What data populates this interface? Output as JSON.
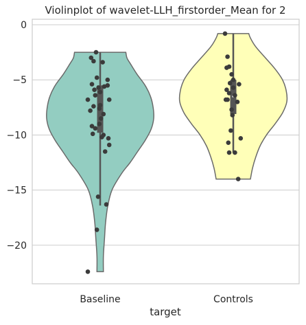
{
  "chart_data": {
    "type": "violin",
    "title": "Violinplot of wavelet-LLH_firstorder_Mean for 2",
    "xlabel": "target",
    "ylabel": "",
    "ylim": [
      -23.5,
      0.5
    ],
    "yticks": [
      0,
      -5,
      -10,
      -15,
      -20
    ],
    "ytick_labels": [
      "0",
      "−5",
      "−10",
      "−15",
      "−20"
    ],
    "grid": true,
    "categories": [
      "Baseline",
      "Controls"
    ],
    "series": [
      {
        "color": "#93cdc1",
        "min": -22.4,
        "max": -2.5,
        "q1": -9.8,
        "median": -7.5,
        "q3": -5.5,
        "whisker_low": -16.4,
        "whisker_high": -2.5,
        "density": [
          [
            -22.4,
            0.06
          ],
          [
            -21.0,
            0.06
          ],
          [
            -19.5,
            0.08
          ],
          [
            -18.0,
            0.1
          ],
          [
            -16.5,
            0.14
          ],
          [
            -15.0,
            0.22
          ],
          [
            -13.5,
            0.4
          ],
          [
            -12.5,
            0.56
          ],
          [
            -11.5,
            0.7
          ],
          [
            -10.5,
            0.84
          ],
          [
            -9.5,
            0.95
          ],
          [
            -8.5,
            1.0
          ],
          [
            -7.5,
            0.99
          ],
          [
            -6.5,
            0.94
          ],
          [
            -5.5,
            0.84
          ],
          [
            -4.5,
            0.69
          ],
          [
            -3.5,
            0.56
          ],
          [
            -3.0,
            0.5
          ],
          [
            -2.5,
            0.48
          ]
        ],
        "points": [
          [
            -0.3,
            -22.4
          ],
          [
            -0.08,
            -18.6
          ],
          [
            0.15,
            -16.3
          ],
          [
            -0.05,
            -15.6
          ],
          [
            0.12,
            -11.5
          ],
          [
            0.22,
            -10.9
          ],
          [
            0.2,
            -10.3
          ],
          [
            0.04,
            -10.2
          ],
          [
            0.08,
            -10.0
          ],
          [
            -0.18,
            -9.9
          ],
          [
            -0.12,
            -9.4
          ],
          [
            -0.2,
            -9.2
          ],
          [
            -0.02,
            -9.0
          ],
          [
            0.02,
            -8.5
          ],
          [
            0.08,
            -8.1
          ],
          [
            -0.24,
            -7.8
          ],
          [
            -0.02,
            -7.6
          ],
          [
            0.0,
            -7.3
          ],
          [
            -0.16,
            -7.4
          ],
          [
            -0.3,
            -6.8
          ],
          [
            0.22,
            -6.8
          ],
          [
            -0.12,
            -6.4
          ],
          [
            0.0,
            -6.1
          ],
          [
            -0.14,
            -5.9
          ],
          [
            -0.04,
            -5.7
          ],
          [
            0.1,
            -5.6
          ],
          [
            0.18,
            -5.5
          ],
          [
            -0.2,
            -5.4
          ],
          [
            0.18,
            -5.0
          ],
          [
            -0.08,
            -4.8
          ],
          [
            0.06,
            -3.4
          ],
          [
            -0.16,
            -3.3
          ],
          [
            -0.22,
            -3.0
          ],
          [
            -0.1,
            -2.5
          ]
        ]
      },
      {
        "color": "#ffffb8",
        "min": -14.0,
        "max": -0.8,
        "q1": -8.1,
        "median": -6.5,
        "q3": -5.0,
        "whisker_low": -11.6,
        "whisker_high": -0.8,
        "density": [
          [
            -14.0,
            0.32
          ],
          [
            -13.0,
            0.36
          ],
          [
            -12.0,
            0.42
          ],
          [
            -11.0,
            0.5
          ],
          [
            -10.0,
            0.62
          ],
          [
            -9.0,
            0.78
          ],
          [
            -8.0,
            0.92
          ],
          [
            -7.0,
            1.0
          ],
          [
            -6.0,
            0.99
          ],
          [
            -5.0,
            0.92
          ],
          [
            -4.0,
            0.78
          ],
          [
            -3.0,
            0.6
          ],
          [
            -2.0,
            0.42
          ],
          [
            -1.2,
            0.32
          ],
          [
            -0.8,
            0.29
          ]
        ],
        "points": [
          [
            0.12,
            -14.0
          ],
          [
            0.04,
            -11.6
          ],
          [
            -0.1,
            -11.6
          ],
          [
            0.18,
            -10.3
          ],
          [
            -0.12,
            -10.7
          ],
          [
            -0.06,
            -9.6
          ],
          [
            -0.02,
            -8.2
          ],
          [
            -0.04,
            -7.7
          ],
          [
            0.1,
            -7.0
          ],
          [
            -0.14,
            -6.8
          ],
          [
            -0.18,
            -6.8
          ],
          [
            0.04,
            -6.4
          ],
          [
            -0.1,
            -6.2
          ],
          [
            -0.16,
            -5.9
          ],
          [
            0.0,
            -5.7
          ],
          [
            0.14,
            -5.4
          ],
          [
            -0.08,
            -5.3
          ],
          [
            0.0,
            -5.0
          ],
          [
            -0.04,
            -4.5
          ],
          [
            -0.1,
            -3.8
          ],
          [
            -0.16,
            -3.9
          ],
          [
            -0.14,
            -2.9
          ],
          [
            -0.2,
            -0.8
          ]
        ]
      }
    ]
  }
}
